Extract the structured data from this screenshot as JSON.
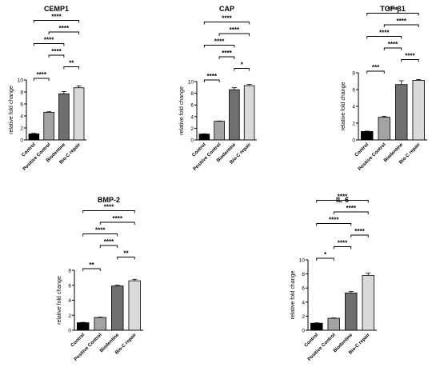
{
  "colors": {
    "control": "#000000",
    "positive_control": "#a3a3a3",
    "biodentine": "#6f6f6f",
    "bio_c_repair": "#d9d9d9",
    "axis": "#000000"
  },
  "chart_data": [
    {
      "type": "bar",
      "title": "CEMP1",
      "ylabel": "relative fold change",
      "categories": [
        "Control",
        "Positive Control",
        "Biodentine",
        "Bio-C repair"
      ],
      "values": [
        1.0,
        4.6,
        7.7,
        8.7
      ],
      "errors": [
        0.1,
        0.1,
        0.35,
        0.3
      ],
      "ylim": [
        0,
        10
      ],
      "yticks": [
        "0",
        "2",
        "4",
        "6",
        "8",
        "10"
      ],
      "significance": [
        {
          "from": 0,
          "to": 1,
          "label": "****"
        },
        {
          "from": 2,
          "to": 3,
          "label": "**"
        },
        {
          "from": 1,
          "to": 2,
          "label": "****"
        },
        {
          "from": 0,
          "to": 2,
          "label": "****"
        },
        {
          "from": 1,
          "to": 3,
          "label": "****"
        },
        {
          "from": 0,
          "to": 3,
          "label": "****"
        }
      ]
    },
    {
      "type": "bar",
      "title": "CAP",
      "ylabel": "relative fold change",
      "categories": [
        "Control",
        "Positive Control",
        "Biodentine",
        "Bio-C repair"
      ],
      "values": [
        1.0,
        3.2,
        8.6,
        9.3
      ],
      "errors": [
        0.05,
        0.05,
        0.35,
        0.2
      ],
      "ylim": [
        0,
        10
      ],
      "yticks": [
        "0",
        "2",
        "4",
        "6",
        "8",
        "10"
      ],
      "significance": [
        {
          "from": 0,
          "to": 1,
          "label": "****"
        },
        {
          "from": 2,
          "to": 3,
          "label": "*"
        },
        {
          "from": 1,
          "to": 2,
          "label": "****"
        },
        {
          "from": 0,
          "to": 2,
          "label": "****"
        },
        {
          "from": 1,
          "to": 3,
          "label": "****"
        },
        {
          "from": 0,
          "to": 3,
          "label": "****"
        }
      ]
    },
    {
      "type": "bar",
      "title": "TGF-β1",
      "ylabel": "relative fold change",
      "categories": [
        "Control",
        "Positive Control",
        "Biodentine",
        "Bio-C repair"
      ],
      "values": [
        1.0,
        2.7,
        6.6,
        7.1
      ],
      "errors": [
        0.05,
        0.1,
        0.45,
        0.1
      ],
      "ylim": [
        0,
        8
      ],
      "yticks": [
        "0",
        "2",
        "4",
        "6",
        "8"
      ],
      "significance": [
        {
          "from": 0,
          "to": 1,
          "label": "***"
        },
        {
          "from": 2,
          "to": 3,
          "label": "****"
        },
        {
          "from": 1,
          "to": 2,
          "label": "****"
        },
        {
          "from": 0,
          "to": 2,
          "label": "****"
        },
        {
          "from": 1,
          "to": 3,
          "label": "****"
        },
        {
          "from": 0,
          "to": 3,
          "label": "****"
        }
      ]
    },
    {
      "type": "bar",
      "title": "BMP-2",
      "ylabel": "relative fold change",
      "categories": [
        "Control",
        "Positive Control",
        "Biodentine",
        "Bio-C repair"
      ],
      "values": [
        1.0,
        1.7,
        5.9,
        6.6
      ],
      "errors": [
        0.05,
        0.05,
        0.1,
        0.2
      ],
      "ylim": [
        0,
        8
      ],
      "yticks": [
        "0",
        "2",
        "4",
        "6",
        "8"
      ],
      "significance": [
        {
          "from": 0,
          "to": 1,
          "label": "**"
        },
        {
          "from": 2,
          "to": 3,
          "label": "**"
        },
        {
          "from": 1,
          "to": 2,
          "label": "****"
        },
        {
          "from": 0,
          "to": 2,
          "label": "****"
        },
        {
          "from": 1,
          "to": 3,
          "label": "****"
        },
        {
          "from": 0,
          "to": 3,
          "label": "****"
        }
      ]
    },
    {
      "type": "bar",
      "title": "IL-6",
      "ylabel": "relative fold change",
      "categories": [
        "Control",
        "Positive Control",
        "Biodentine",
        "Bio-C repair"
      ],
      "values": [
        1.0,
        1.7,
        5.3,
        7.8
      ],
      "errors": [
        0.05,
        0.05,
        0.2,
        0.3
      ],
      "ylim": [
        0,
        10
      ],
      "yticks": [
        "0",
        "2",
        "4",
        "6",
        "8",
        "10"
      ],
      "significance": [
        {
          "from": 0,
          "to": 1,
          "label": "*"
        },
        {
          "from": 1,
          "to": 2,
          "label": "****"
        },
        {
          "from": 2,
          "to": 3,
          "label": "****"
        },
        {
          "from": 0,
          "to": 2,
          "label": "****"
        },
        {
          "from": 1,
          "to": 3,
          "label": "****"
        },
        {
          "from": 0,
          "to": 3,
          "label": "****"
        }
      ]
    }
  ]
}
